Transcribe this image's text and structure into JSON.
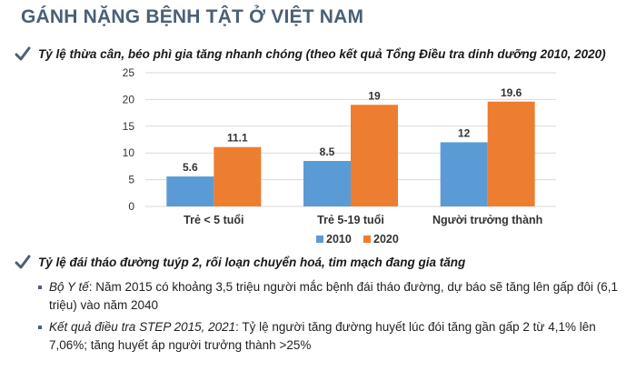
{
  "title": "GÁNH NẶNG BỆNH TẬT Ở VIỆT NAM",
  "check1": "Tỷ lệ thừa cân, béo phì gia tăng nhanh chóng (theo kết quả Tổng Điều tra dinh dưỡng 2010, 2020)",
  "check2": "Tỷ lệ đái tháo đường tuýp 2, rối loạn chuyển hoá, tim mạch đang gia tăng",
  "bullets": [
    {
      "source": "Bộ Y tế",
      "text": ": Năm 2015 có khoảng 3,5 triệu người mắc bệnh đái tháo đường, dự báo sẽ tăng lên gấp đôi (6,1 triệu) vào năm 2040"
    },
    {
      "source": "Kết quả điều tra STEP 2015, 2021",
      "text": ": Tỷ lệ người tăng đường huyết lúc đói tăng gần gấp 2 từ 4,1% lên 7,06%; tăng huyết áp người trưởng thành >25%"
    }
  ],
  "colors": {
    "title": "#4a6076",
    "s2010": "#5b9bd5",
    "s2020": "#ed7d31",
    "check": "#4a6076"
  },
  "chart_data": {
    "type": "bar",
    "title": "",
    "xlabel": "",
    "ylabel": "",
    "categories": [
      "Trẻ < 5 tuổi",
      "Trẻ 5-19 tuổi",
      "Người trưởng thành"
    ],
    "series": [
      {
        "name": "2010",
        "values": [
          5.6,
          8.5,
          12
        ],
        "labels": [
          "5.6",
          "8.5",
          "12"
        ],
        "color": "#5b9bd5"
      },
      {
        "name": "2020",
        "values": [
          11.1,
          19,
          19.6
        ],
        "labels": [
          "11.1",
          "19",
          "19.6"
        ],
        "color": "#ed7d31"
      }
    ],
    "ylim": [
      0,
      25
    ],
    "yticks": [
      "0",
      "5",
      "10",
      "15",
      "20",
      "25"
    ],
    "grid": true,
    "legend": "bottom"
  }
}
